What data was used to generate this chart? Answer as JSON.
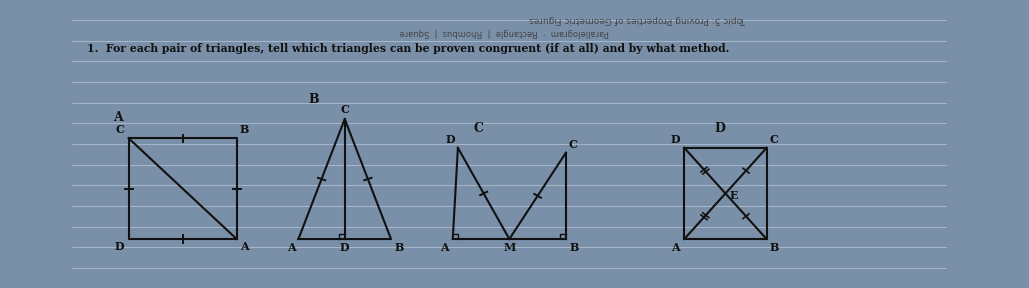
{
  "bg_outer": "#7a8fa8",
  "paper_color": "#dde4ed",
  "line_color": "#111111",
  "grid_color": "#b8c8d8",
  "question": "1.  For each pair of triangles, tell which triangles can be proven congruent (if at all) and by what method.",
  "header1": "Topic 5: Proving Properties of Geometric Figures",
  "header2": "Parallelogram  ·  Rectangle  |  Rhombus  |  Square",
  "lw": 1.5,
  "tick_size": 0.38
}
